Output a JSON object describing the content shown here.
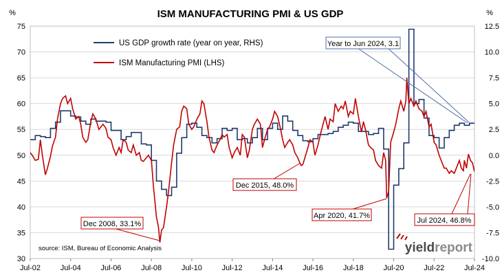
{
  "chart_data": {
    "type": "line",
    "title": "ISM MANUFACTURING PMI & US GDP",
    "y_left_unit": "%",
    "y_right_unit": "%",
    "y_left_range": [
      30,
      75
    ],
    "y_left_ticks": [
      "30",
      "35",
      "40",
      "45",
      "50",
      "55",
      "60",
      "65",
      "70",
      "75"
    ],
    "y_right_range": [
      -10,
      12.5
    ],
    "y_right_ticks": [
      "-10.0",
      "-7.5",
      "-5.0",
      "-2.5",
      "0.0",
      "2.5",
      "5.0",
      "7.5",
      "10.0",
      "12.5"
    ],
    "x_range": [
      2002.5,
      2024.5
    ],
    "x_ticks": [
      {
        "label": "Jul-02",
        "t": 2002.5
      },
      {
        "label": "Jul-04",
        "t": 2004.5
      },
      {
        "label": "Jul-06",
        "t": 2006.5
      },
      {
        "label": "Jul-08",
        "t": 2008.5
      },
      {
        "label": "Jul-10",
        "t": 2010.5
      },
      {
        "label": "Jul-12",
        "t": 2012.5
      },
      {
        "label": "Jul-14",
        "t": 2014.5
      },
      {
        "label": "Jul-16",
        "t": 2016.5
      },
      {
        "label": "Jul-18",
        "t": 2018.5
      },
      {
        "label": "Jul-20",
        "t": 2020.5
      },
      {
        "label": "Jul-22",
        "t": 2022.5
      },
      {
        "label": "Jul-24",
        "t": 2024.5
      }
    ],
    "grid": "horizontal",
    "legend_position": "top-left",
    "series": [
      {
        "name": "US GDP growth rate (year on year, RHS)",
        "axis": "right",
        "color": "#1f3a6e",
        "step": true,
        "points": [
          [
            2002.5,
            1.5
          ],
          [
            2002.75,
            1.9
          ],
          [
            2003.0,
            1.8
          ],
          [
            2003.25,
            1.7
          ],
          [
            2003.5,
            2.6
          ],
          [
            2003.75,
            3.2
          ],
          [
            2004.0,
            4.3
          ],
          [
            2004.25,
            4.3
          ],
          [
            2004.5,
            3.8
          ],
          [
            2004.75,
            3.7
          ],
          [
            2005.0,
            3.3
          ],
          [
            2005.25,
            3.0
          ],
          [
            2005.5,
            3.5
          ],
          [
            2005.75,
            3.3
          ],
          [
            2006.0,
            3.3
          ],
          [
            2006.25,
            3.2
          ],
          [
            2006.5,
            2.4
          ],
          [
            2006.75,
            2.4
          ],
          [
            2007.0,
            1.5
          ],
          [
            2007.25,
            1.8
          ],
          [
            2007.5,
            2.2
          ],
          [
            2007.75,
            2.2
          ],
          [
            2008.0,
            1.1
          ],
          [
            2008.25,
            1.0
          ],
          [
            2008.5,
            -0.5
          ],
          [
            2008.75,
            -2.5
          ],
          [
            2009.0,
            -3.3
          ],
          [
            2009.25,
            -3.9
          ],
          [
            2009.5,
            -3.1
          ],
          [
            2009.75,
            0.2
          ],
          [
            2010.0,
            1.7
          ],
          [
            2010.25,
            3.0
          ],
          [
            2010.5,
            3.1
          ],
          [
            2010.75,
            2.7
          ],
          [
            2011.0,
            1.9
          ],
          [
            2011.25,
            1.7
          ],
          [
            2011.5,
            1.2
          ],
          [
            2011.75,
            1.6
          ],
          [
            2012.0,
            2.6
          ],
          [
            2012.25,
            2.4
          ],
          [
            2012.5,
            2.6
          ],
          [
            2012.75,
            1.5
          ],
          [
            2013.0,
            1.6
          ],
          [
            2013.25,
            1.2
          ],
          [
            2013.5,
            1.7
          ],
          [
            2013.75,
            2.6
          ],
          [
            2014.0,
            1.5
          ],
          [
            2014.25,
            2.6
          ],
          [
            2014.5,
            3.1
          ],
          [
            2014.75,
            2.5
          ],
          [
            2015.0,
            3.8
          ],
          [
            2015.25,
            3.3
          ],
          [
            2015.5,
            2.4
          ],
          [
            2015.75,
            1.9
          ],
          [
            2016.0,
            1.4
          ],
          [
            2016.25,
            1.3
          ],
          [
            2016.5,
            1.6
          ],
          [
            2016.75,
            2.0
          ],
          [
            2017.0,
            2.0
          ],
          [
            2017.25,
            2.1
          ],
          [
            2017.5,
            2.3
          ],
          [
            2017.75,
            2.7
          ],
          [
            2018.0,
            2.9
          ],
          [
            2018.25,
            3.2
          ],
          [
            2018.5,
            3.1
          ],
          [
            2018.75,
            2.3
          ],
          [
            2019.0,
            2.3
          ],
          [
            2019.25,
            2.0
          ],
          [
            2019.5,
            2.1
          ],
          [
            2019.75,
            2.6
          ],
          [
            2020.0,
            0.6
          ],
          [
            2020.25,
            -9.1
          ],
          [
            2020.5,
            -2.9
          ],
          [
            2020.75,
            -1.3
          ],
          [
            2021.0,
            1.2
          ],
          [
            2021.25,
            12.2
          ],
          [
            2021.5,
            5.0
          ],
          [
            2021.75,
            5.4
          ],
          [
            2022.0,
            3.6
          ],
          [
            2022.25,
            1.9
          ],
          [
            2022.5,
            1.7
          ],
          [
            2022.75,
            0.7
          ],
          [
            2023.0,
            1.7
          ],
          [
            2023.25,
            2.4
          ],
          [
            2023.5,
            2.9
          ],
          [
            2023.75,
            3.1
          ],
          [
            2024.0,
            2.9
          ],
          [
            2024.25,
            3.1
          ],
          [
            2024.5,
            3.1
          ]
        ]
      },
      {
        "name": "ISM Manufacturing PMI (LHS)",
        "axis": "left",
        "color": "#c00000",
        "step": false,
        "points": [
          [
            2002.5,
            50.5
          ],
          [
            2002.6,
            50.0
          ],
          [
            2002.75,
            49.0
          ],
          [
            2002.9,
            49.2
          ],
          [
            2003.0,
            53.0
          ],
          [
            2003.1,
            50.0
          ],
          [
            2003.25,
            46.2
          ],
          [
            2003.35,
            47.5
          ],
          [
            2003.5,
            49.8
          ],
          [
            2003.6,
            51.8
          ],
          [
            2003.75,
            53.5
          ],
          [
            2003.85,
            57.0
          ],
          [
            2004.0,
            60.0
          ],
          [
            2004.1,
            61.0
          ],
          [
            2004.25,
            61.5
          ],
          [
            2004.35,
            60.0
          ],
          [
            2004.5,
            61.0
          ],
          [
            2004.6,
            59.0
          ],
          [
            2004.75,
            57.0
          ],
          [
            2004.9,
            57.5
          ],
          [
            2005.0,
            56.0
          ],
          [
            2005.1,
            53.5
          ],
          [
            2005.25,
            52.5
          ],
          [
            2005.35,
            53.0
          ],
          [
            2005.5,
            56.5
          ],
          [
            2005.6,
            58.0
          ],
          [
            2005.75,
            57.0
          ],
          [
            2005.9,
            55.0
          ],
          [
            2006.0,
            55.5
          ],
          [
            2006.1,
            56.0
          ],
          [
            2006.25,
            55.2
          ],
          [
            2006.35,
            53.5
          ],
          [
            2006.5,
            53.0
          ],
          [
            2006.6,
            51.5
          ],
          [
            2006.75,
            50.0
          ],
          [
            2006.9,
            51.5
          ],
          [
            2007.0,
            50.5
          ],
          [
            2007.1,
            53.0
          ],
          [
            2007.25,
            52.5
          ],
          [
            2007.35,
            51.0
          ],
          [
            2007.5,
            50.5
          ],
          [
            2007.6,
            52.0
          ],
          [
            2007.75,
            50.0
          ],
          [
            2007.9,
            50.5
          ],
          [
            2008.0,
            49.0
          ],
          [
            2008.1,
            48.8
          ],
          [
            2008.25,
            49.5
          ],
          [
            2008.35,
            50.0
          ],
          [
            2008.5,
            49.0
          ],
          [
            2008.6,
            44.0
          ],
          [
            2008.75,
            38.0
          ],
          [
            2008.85,
            36.0
          ],
          [
            2008.92,
            33.1
          ],
          [
            2009.0,
            35.5
          ],
          [
            2009.1,
            36.0
          ],
          [
            2009.25,
            40.0
          ],
          [
            2009.35,
            43.0
          ],
          [
            2009.5,
            48.5
          ],
          [
            2009.6,
            52.0
          ],
          [
            2009.75,
            55.0
          ],
          [
            2009.9,
            55.5
          ],
          [
            2010.0,
            58.5
          ],
          [
            2010.1,
            59.5
          ],
          [
            2010.25,
            59.0
          ],
          [
            2010.35,
            56.0
          ],
          [
            2010.5,
            55.0
          ],
          [
            2010.6,
            55.5
          ],
          [
            2010.75,
            57.0
          ],
          [
            2010.9,
            58.0
          ],
          [
            2011.0,
            60.5
          ],
          [
            2011.1,
            60.0
          ],
          [
            2011.25,
            56.5
          ],
          [
            2011.35,
            53.5
          ],
          [
            2011.5,
            51.0
          ],
          [
            2011.6,
            50.5
          ],
          [
            2011.75,
            52.0
          ],
          [
            2011.9,
            53.0
          ],
          [
            2012.0,
            54.0
          ],
          [
            2012.1,
            53.5
          ],
          [
            2012.25,
            54.0
          ],
          [
            2012.35,
            51.5
          ],
          [
            2012.5,
            49.5
          ],
          [
            2012.6,
            50.5
          ],
          [
            2012.75,
            51.5
          ],
          [
            2012.9,
            50.0
          ],
          [
            2013.0,
            54.0
          ],
          [
            2013.1,
            53.5
          ],
          [
            2013.25,
            49.5
          ],
          [
            2013.35,
            51.0
          ],
          [
            2013.5,
            55.0
          ],
          [
            2013.6,
            56.0
          ],
          [
            2013.75,
            57.0
          ],
          [
            2013.9,
            56.0
          ],
          [
            2014.0,
            51.5
          ],
          [
            2014.1,
            53.0
          ],
          [
            2014.25,
            55.0
          ],
          [
            2014.35,
            55.5
          ],
          [
            2014.5,
            57.0
          ],
          [
            2014.6,
            58.5
          ],
          [
            2014.75,
            57.5
          ],
          [
            2014.9,
            55.0
          ],
          [
            2015.0,
            53.0
          ],
          [
            2015.1,
            51.5
          ],
          [
            2015.25,
            52.5
          ],
          [
            2015.35,
            53.0
          ],
          [
            2015.5,
            52.0
          ],
          [
            2015.6,
            50.5
          ],
          [
            2015.75,
            49.5
          ],
          [
            2015.85,
            48.5
          ],
          [
            2015.92,
            48.0
          ],
          [
            2016.0,
            48.2
          ],
          [
            2016.1,
            49.5
          ],
          [
            2016.25,
            51.5
          ],
          [
            2016.35,
            53.0
          ],
          [
            2016.5,
            52.5
          ],
          [
            2016.6,
            50.0
          ],
          [
            2016.75,
            52.0
          ],
          [
            2016.9,
            54.5
          ],
          [
            2017.0,
            56.0
          ],
          [
            2017.1,
            57.5
          ],
          [
            2017.25,
            55.0
          ],
          [
            2017.35,
            57.0
          ],
          [
            2017.5,
            56.5
          ],
          [
            2017.6,
            60.0
          ],
          [
            2017.75,
            58.5
          ],
          [
            2017.9,
            59.5
          ],
          [
            2018.0,
            59.0
          ],
          [
            2018.1,
            60.5
          ],
          [
            2018.25,
            57.5
          ],
          [
            2018.35,
            58.5
          ],
          [
            2018.5,
            58.0
          ],
          [
            2018.6,
            61.0
          ],
          [
            2018.75,
            57.5
          ],
          [
            2018.9,
            54.5
          ],
          [
            2019.0,
            56.5
          ],
          [
            2019.1,
            55.0
          ],
          [
            2019.25,
            52.0
          ],
          [
            2019.35,
            51.5
          ],
          [
            2019.5,
            51.0
          ],
          [
            2019.6,
            49.0
          ],
          [
            2019.75,
            48.0
          ],
          [
            2019.9,
            47.5
          ],
          [
            2020.0,
            50.5
          ],
          [
            2020.1,
            49.0
          ],
          [
            2020.15,
            41.7
          ],
          [
            2020.25,
            43.0
          ],
          [
            2020.35,
            52.5
          ],
          [
            2020.5,
            54.5
          ],
          [
            2020.6,
            56.0
          ],
          [
            2020.75,
            59.0
          ],
          [
            2020.85,
            60.5
          ],
          [
            2021.0,
            58.5
          ],
          [
            2021.1,
            60.5
          ],
          [
            2021.15,
            65.0
          ],
          [
            2021.25,
            60.0
          ],
          [
            2021.35,
            61.0
          ],
          [
            2021.5,
            59.5
          ],
          [
            2021.6,
            60.5
          ],
          [
            2021.75,
            59.0
          ],
          [
            2021.9,
            58.5
          ],
          [
            2022.0,
            57.5
          ],
          [
            2022.1,
            58.5
          ],
          [
            2022.25,
            55.5
          ],
          [
            2022.35,
            56.0
          ],
          [
            2022.5,
            52.5
          ],
          [
            2022.6,
            52.0
          ],
          [
            2022.75,
            50.0
          ],
          [
            2022.9,
            48.5
          ],
          [
            2023.0,
            47.5
          ],
          [
            2023.1,
            47.5
          ],
          [
            2023.25,
            46.5
          ],
          [
            2023.35,
            47.0
          ],
          [
            2023.5,
            46.5
          ],
          [
            2023.6,
            47.5
          ],
          [
            2023.75,
            49.0
          ],
          [
            2023.85,
            47.5
          ],
          [
            2023.95,
            47.0
          ],
          [
            2024.0,
            49.0
          ],
          [
            2024.1,
            47.5
          ],
          [
            2024.2,
            50.2
          ],
          [
            2024.3,
            49.0
          ],
          [
            2024.4,
            48.5
          ],
          [
            2024.5,
            46.8
          ]
        ]
      }
    ],
    "annotations": [
      {
        "id": "gdp",
        "text": "Year to Jun 2024, 3.1"
      },
      {
        "id": "dec2015",
        "text": "Dec 2015, 48.0%"
      },
      {
        "id": "apr2020",
        "text": "Apr 2020, 41.7%"
      },
      {
        "id": "dec2008",
        "text": "Dec 2008, 33.1%"
      },
      {
        "id": "jul2024",
        "text": "Jul 2024, 46.8%"
      }
    ],
    "source": "source: ISM, Bureau of Economic Analysis"
  },
  "logo": {
    "part1": "yield",
    "part2": "report"
  }
}
